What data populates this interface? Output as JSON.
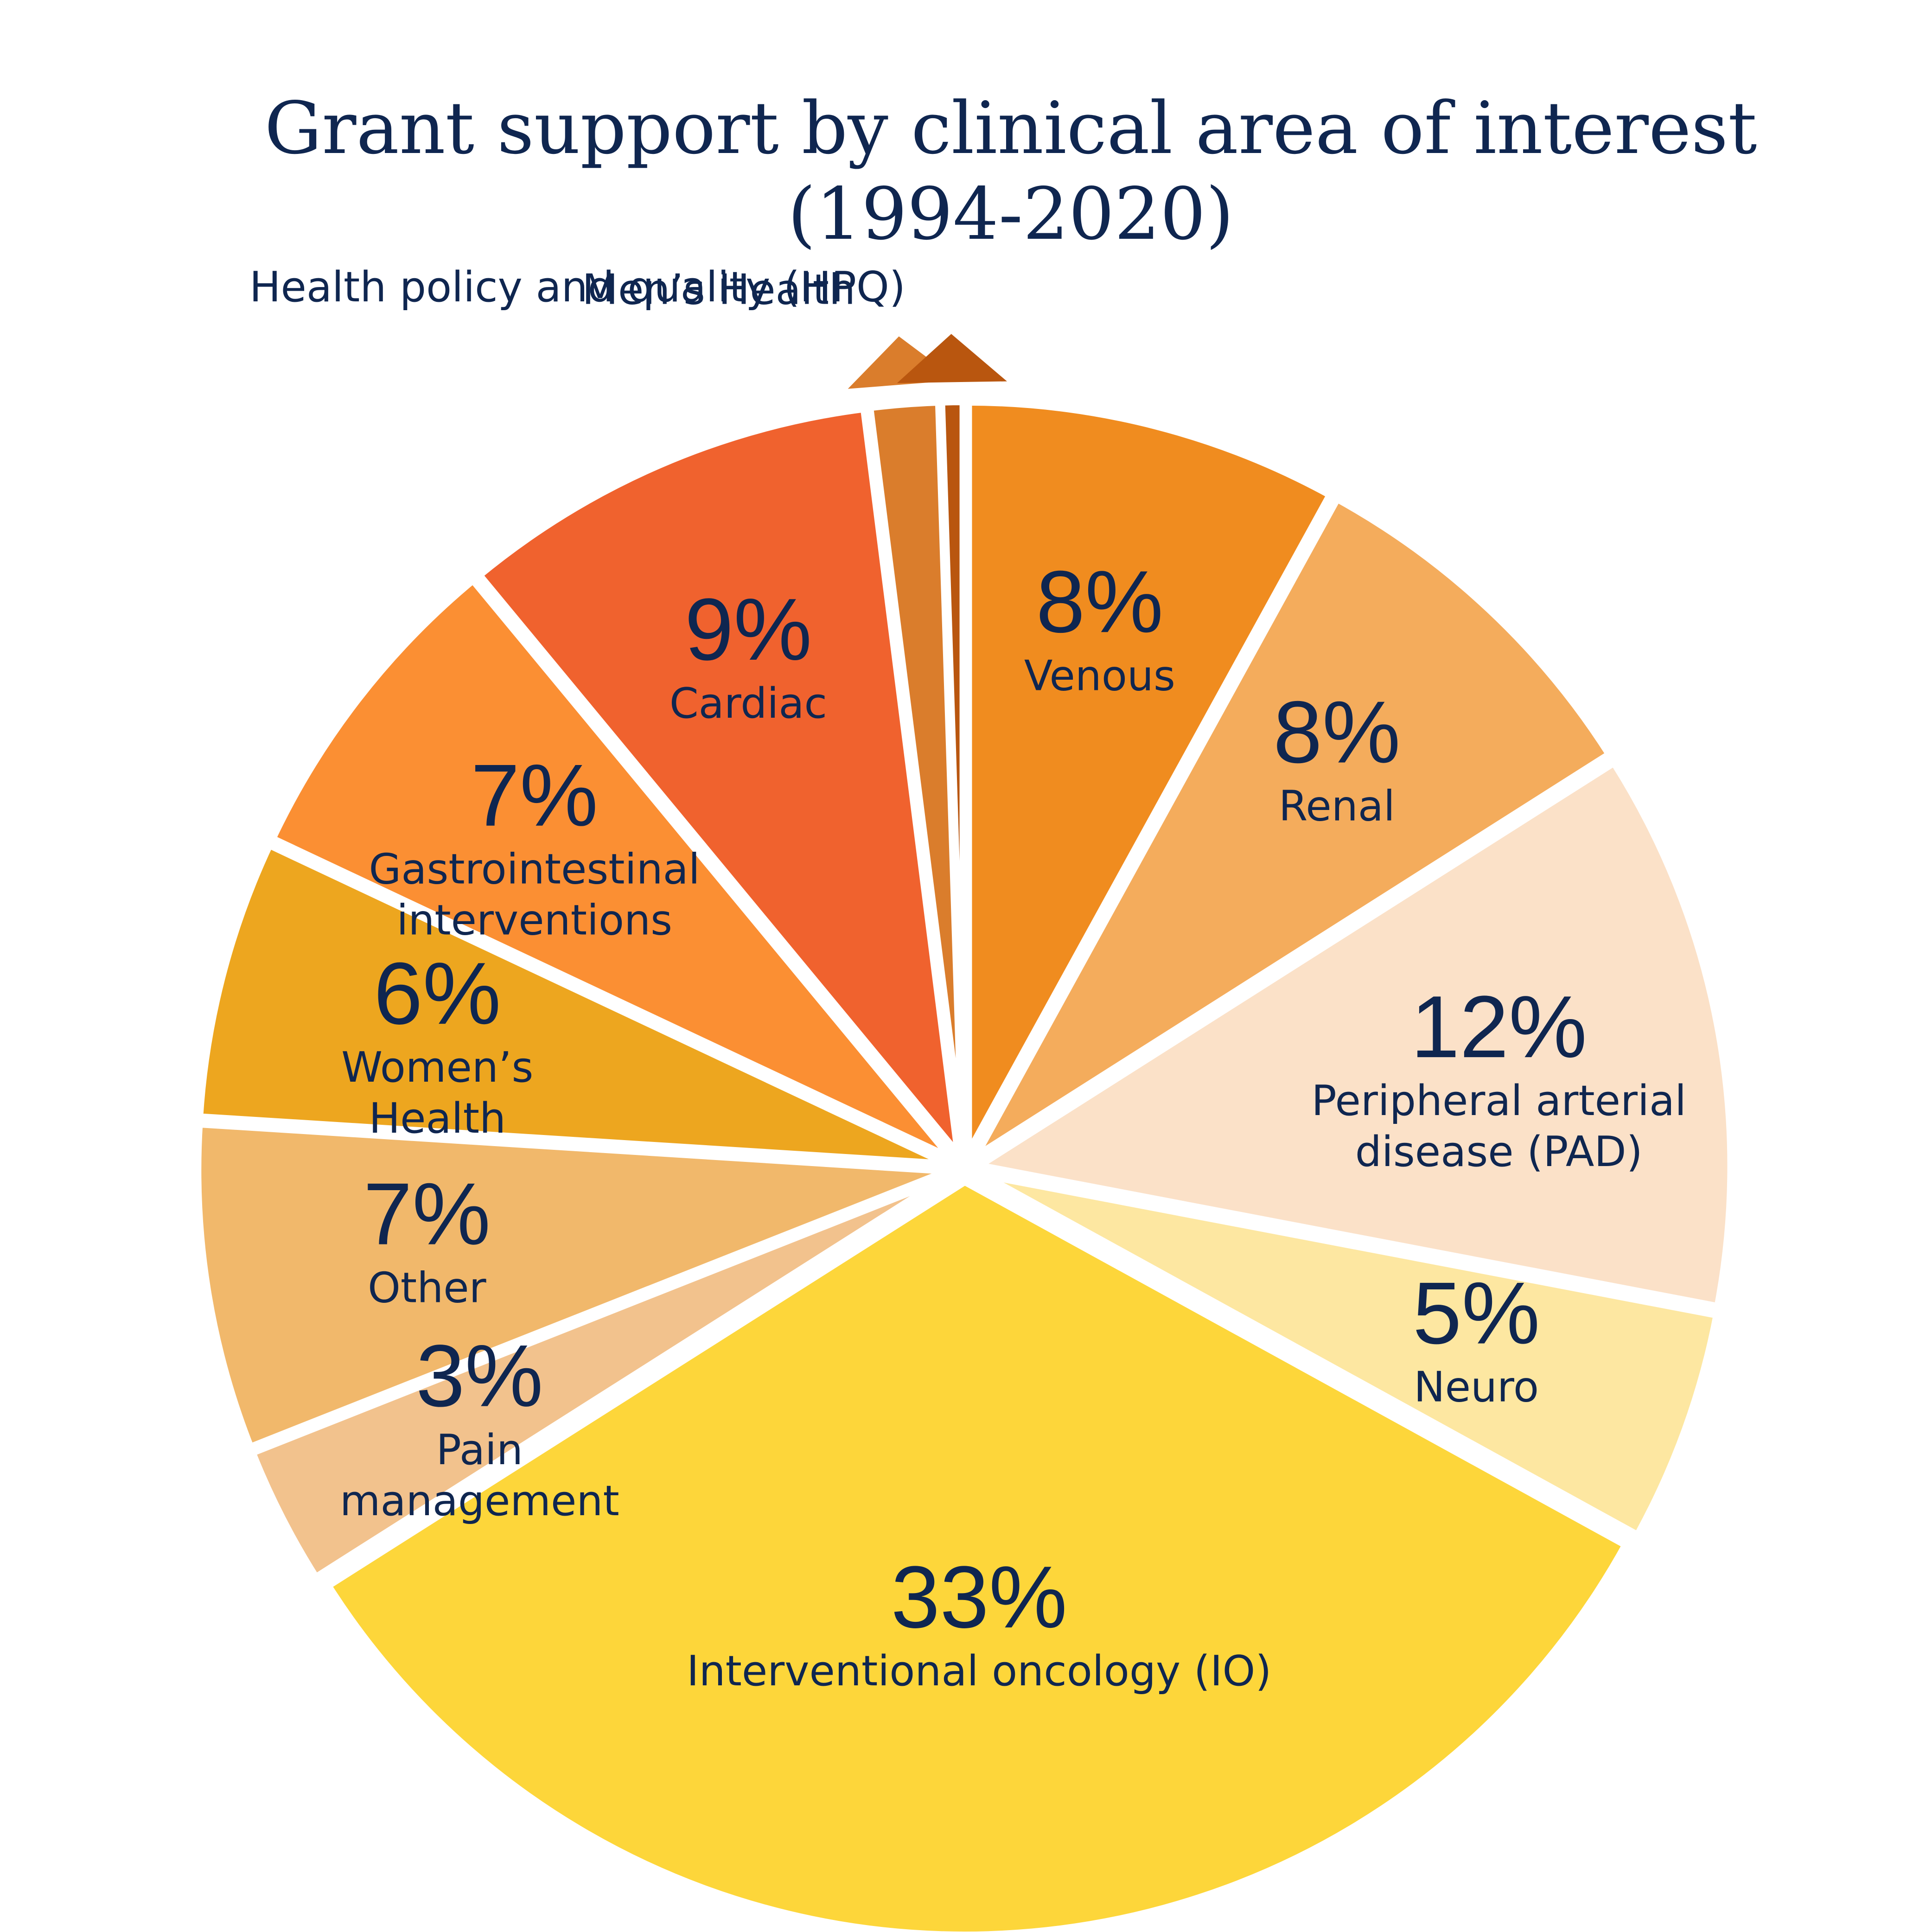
{
  "chart_data": {
    "type": "pie",
    "title": [
      "Grant support by clinical area of interest",
      "(1994-2020)"
    ],
    "start_angle_deg": 0,
    "direction": "clockwise",
    "series": [
      {
        "label": [
          "Venous"
        ],
        "value": 8,
        "value_label": "8%",
        "color": "#F08C1F"
      },
      {
        "label": [
          "Renal"
        ],
        "value": 8,
        "value_label": "8%",
        "color": "#F4AC5C"
      },
      {
        "label": [
          "Peripheral arterial",
          "disease (PAD)"
        ],
        "value": 12,
        "value_label": "12%",
        "color": "#FBE1C8"
      },
      {
        "label": [
          "Neuro"
        ],
        "value": 5,
        "value_label": "5%",
        "color": "#FDE7A1"
      },
      {
        "label": [
          "Interventional oncology (IO)"
        ],
        "value": 33,
        "value_label": "33%",
        "color": "#FDD63A"
      },
      {
        "label": [
          "Pain",
          "management"
        ],
        "value": 3,
        "value_label": "3%",
        "color": "#F2C28D"
      },
      {
        "label": [
          "Other"
        ],
        "value": 7,
        "value_label": "7%",
        "color": "#F1B86B"
      },
      {
        "label": [
          "Women’s",
          "Health"
        ],
        "value": 6,
        "value_label": "6%",
        "color": "#EDA61F"
      },
      {
        "label": [
          "Gastrointestinal",
          "interventions"
        ],
        "value": 7,
        "value_label": "7%",
        "color": "#FB8F33"
      },
      {
        "label": [
          "Cardiac"
        ],
        "value": 9,
        "value_label": "9%",
        "color": "#F0622E"
      },
      {
        "label": [
          "Men’s Health"
        ],
        "value": 1.5,
        "value_label": "",
        "color": "#DA7D2C"
      },
      {
        "label": [
          "Health policy and quality (HPQ)"
        ],
        "value": 0.5,
        "value_label": "",
        "color": "#B9560F"
      }
    ]
  }
}
